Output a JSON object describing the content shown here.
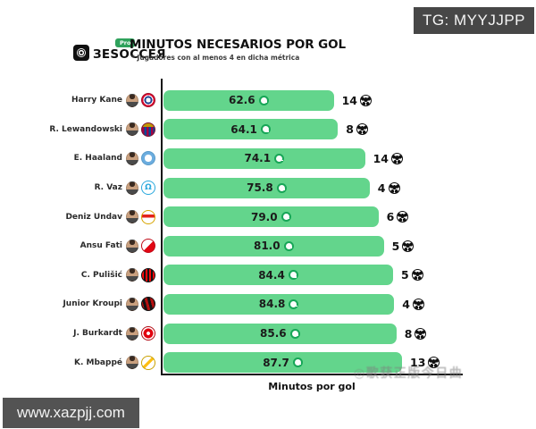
{
  "overlays": {
    "tg_label": "TG: MYYJJPP",
    "site_url": "www.xazpjj.com",
    "cn_watermark": "◎歌获正版今日曲"
  },
  "header": {
    "brand_text": "ЗESOCCEЯ",
    "brand_pro_label": "Pro",
    "title": "MINUTOS NECESARIOS POR GOL",
    "subtitle": "* Jugadores con al menos 4 en dicha métrica"
  },
  "chart": {
    "xlabel": "Minutos por gol",
    "bar_color": "#63d58c",
    "clock_green": "#17a657",
    "pro_green": "#2fa25c",
    "players": [
      {
        "name": "Harry Kane",
        "club": "bayern",
        "club_badge": "bayern-munich-badge",
        "minutes_label": "62.6",
        "minutes": 62.6,
        "goals": "14",
        "badge_glyph": ""
      },
      {
        "name": "R. Lewandowski",
        "club": "barcelona",
        "club_badge": "fc-barcelona-badge",
        "minutes_label": "64.1",
        "minutes": 64.1,
        "goals": "8",
        "badge_glyph": ""
      },
      {
        "name": "E. Haaland",
        "club": "mancity",
        "club_badge": "manchester-city-badge",
        "minutes_label": "74.1",
        "minutes": 74.1,
        "goals": "14",
        "badge_glyph": ""
      },
      {
        "name": "R. Vaz",
        "club": "marseille",
        "club_badge": "olympique-marseille-badge",
        "minutes_label": "75.8",
        "minutes": 75.8,
        "goals": "4",
        "badge_glyph": "Ω"
      },
      {
        "name": "Deniz Undav",
        "club": "stuttgart",
        "club_badge": "vfb-stuttgart-badge",
        "minutes_label": "79.0",
        "minutes": 79.0,
        "goals": "6",
        "badge_glyph": ""
      },
      {
        "name": "Ansu Fati",
        "club": "monaco",
        "club_badge": "as-monaco-badge",
        "minutes_label": "81.0",
        "minutes": 81.0,
        "goals": "5",
        "badge_glyph": ""
      },
      {
        "name": "C. Pulišić",
        "club": "milan",
        "club_badge": "ac-milan-badge",
        "minutes_label": "84.4",
        "minutes": 84.4,
        "goals": "5",
        "badge_glyph": ""
      },
      {
        "name": "Junior Kroupi",
        "club": "bournemouth",
        "club_badge": "bournemouth-badge",
        "minutes_label": "84.8",
        "minutes": 84.8,
        "goals": "4",
        "badge_glyph": ""
      },
      {
        "name": "J. Burkardt",
        "club": "frankfurt",
        "club_badge": "eintracht-frankfurt-badge",
        "minutes_label": "85.6",
        "minutes": 85.6,
        "goals": "8",
        "badge_glyph": ""
      },
      {
        "name": "K. Mbappé",
        "club": "realmadrid",
        "club_badge": "real-madrid-badge",
        "minutes_label": "87.7",
        "minutes": 87.7,
        "goals": "13",
        "badge_glyph": ""
      }
    ]
  },
  "chart_data": {
    "type": "bar",
    "orientation": "horizontal",
    "title": "MINUTOS NECESARIOS POR GOL",
    "subtitle": "* Jugadores con al menos 4 en dicha métrica",
    "xlabel": "Minutos por gol",
    "categories": [
      "Harry Kane",
      "R. Lewandowski",
      "E. Haaland",
      "R. Vaz",
      "Deniz Undav",
      "Ansu Fati",
      "C. Pulišić",
      "Junior Kroupi",
      "J. Burkardt",
      "K. Mbappé"
    ],
    "series": [
      {
        "name": "Minutos por gol",
        "values": [
          62.6,
          64.1,
          74.1,
          75.8,
          79.0,
          81.0,
          84.4,
          84.8,
          85.6,
          87.7
        ]
      },
      {
        "name": "Goles",
        "values": [
          14,
          8,
          14,
          4,
          6,
          5,
          5,
          4,
          8,
          13
        ]
      }
    ],
    "xlim": [
      0,
      92
    ],
    "grid": false,
    "legend": false,
    "bar_color": "#63d58c",
    "sort": "ascending by minutes per goal"
  }
}
